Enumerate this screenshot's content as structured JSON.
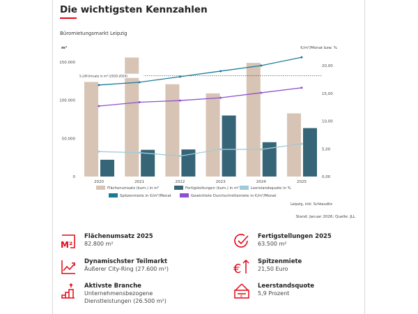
{
  "title": "Die wichtigsten Kennzahlen",
  "chart_data": {
    "type": "bar",
    "title": "Büromietungsmarkt Leipzig",
    "categories": [
      "2020",
      "2021",
      "2022",
      "2023",
      "2024",
      "2025"
    ],
    "ylabel_left": "m²",
    "ylabel_right": "€/m²/Monat bzw. %",
    "ylim_left": [
      0,
      150000
    ],
    "ylim_right": [
      0,
      20
    ],
    "yticks_left": [
      "150.000",
      "100.000",
      "50.000",
      "0"
    ],
    "yticks_right": [
      "20,00",
      "15,00",
      "10,00",
      "5,00",
      "0,00"
    ],
    "series": [
      {
        "name": "Flächenumsatz (kum.) in m²",
        "type": "bar",
        "axis": "left",
        "color": "#d8c4b4",
        "values": [
          124000,
          156000,
          121000,
          109000,
          149000,
          82800
        ]
      },
      {
        "name": "Fertigstellungen (kum.) in m²",
        "type": "bar",
        "axis": "left",
        "color": "#356577",
        "values": [
          22000,
          35000,
          35500,
          80000,
          45000,
          63500
        ]
      },
      {
        "name": "Leerstandsquote in %",
        "type": "line",
        "axis": "right",
        "color": "#9fcbd8",
        "values": [
          4.5,
          4.3,
          3.7,
          4.9,
          4.9,
          5.9
        ]
      },
      {
        "name": "Spitzenmiete in €/m²/Monat",
        "type": "line",
        "axis": "right",
        "color": "#1b7a99",
        "values": [
          16.5,
          17.0,
          18.0,
          19.0,
          20.0,
          21.5
        ]
      },
      {
        "name": "Gewichtete Durchschnittsmiete in €/m²/Monat",
        "type": "line",
        "axis": "right",
        "color": "#8e4fd0",
        "values": [
          12.7,
          13.4,
          13.7,
          14.2,
          15.1,
          16.0
        ]
      }
    ],
    "reference_line": {
      "label": "5-J-Ø-Umsatz in m² (2020-2024)",
      "value": 132000
    },
    "note": "Leipzig, inkl. Schkeuditz",
    "legend": "bottom"
  },
  "source": "Stand: Januar 2026; Quelle: JLL",
  "kpis": [
    {
      "icon": "m2-icon",
      "title": "Flächenumsatz 2025",
      "lines": [
        "82.800 m²"
      ]
    },
    {
      "icon": "trend-chart-icon",
      "title": "Dynamischster Teilmarkt",
      "lines": [
        "Äußerer City-Ring (27.600 m²)"
      ]
    },
    {
      "icon": "growth-bars-icon",
      "title": "Aktivste Branche",
      "lines": [
        "Unternehmensbezogene",
        "Dienstleistungen (26.500 m²)"
      ]
    },
    {
      "icon": "check-circle-icon",
      "title": "Fertigstellungen 2025",
      "lines": [
        "63.500 m²"
      ]
    },
    {
      "icon": "euro-up-icon",
      "title": "Spitzenmiete",
      "lines": [
        "21,50 Euro"
      ]
    },
    {
      "icon": "vacancy-sign-icon",
      "title": "Leerstandsquote",
      "lines": [
        "5,9 Prozent"
      ]
    }
  ],
  "colors": {
    "accent": "#e30613"
  }
}
